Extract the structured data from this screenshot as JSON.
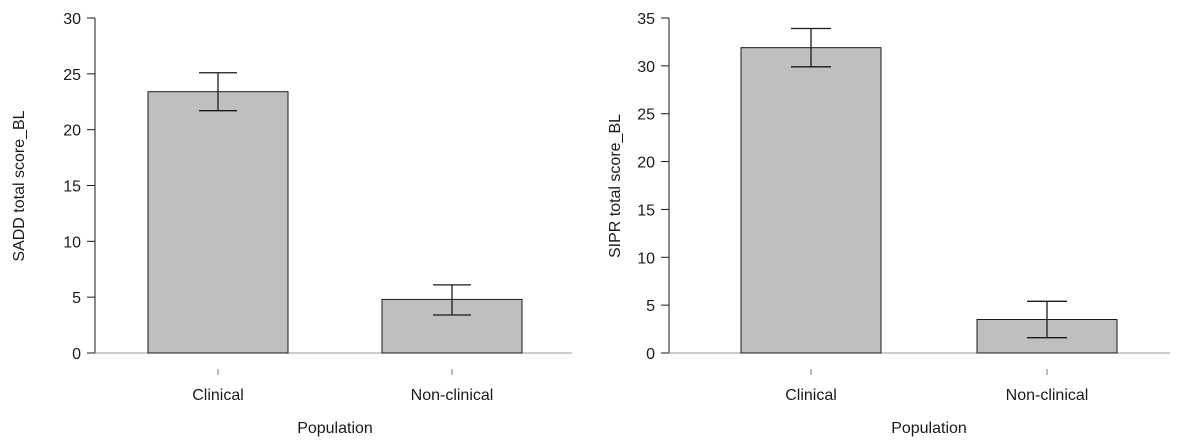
{
  "chart_data": [
    {
      "type": "bar",
      "categories": [
        "Clinical",
        "Non-clinical"
      ],
      "values": [
        23.4,
        4.8
      ],
      "error_bars": [
        {
          "low": 21.7,
          "high": 25.1
        },
        {
          "low": 3.4,
          "high": 6.1
        }
      ],
      "xlabel": "Population",
      "ylabel": "SADD total score_BL",
      "ylim": [
        0,
        30
      ],
      "yticks": [
        0,
        5,
        10,
        15,
        20,
        25,
        30
      ],
      "grid": false,
      "bar_color": "#bfbfbf"
    },
    {
      "type": "bar",
      "categories": [
        "Clinical",
        "Non-clinical"
      ],
      "values": [
        31.9,
        3.5
      ],
      "error_bars": [
        {
          "low": 29.9,
          "high": 33.9
        },
        {
          "low": 1.6,
          "high": 5.4
        }
      ],
      "xlabel": "Population",
      "ylabel": "SIPR total score_BL",
      "ylim": [
        0,
        35
      ],
      "yticks": [
        0,
        5,
        10,
        15,
        20,
        25,
        30,
        35
      ],
      "grid": false,
      "bar_color": "#bfbfbf"
    }
  ]
}
